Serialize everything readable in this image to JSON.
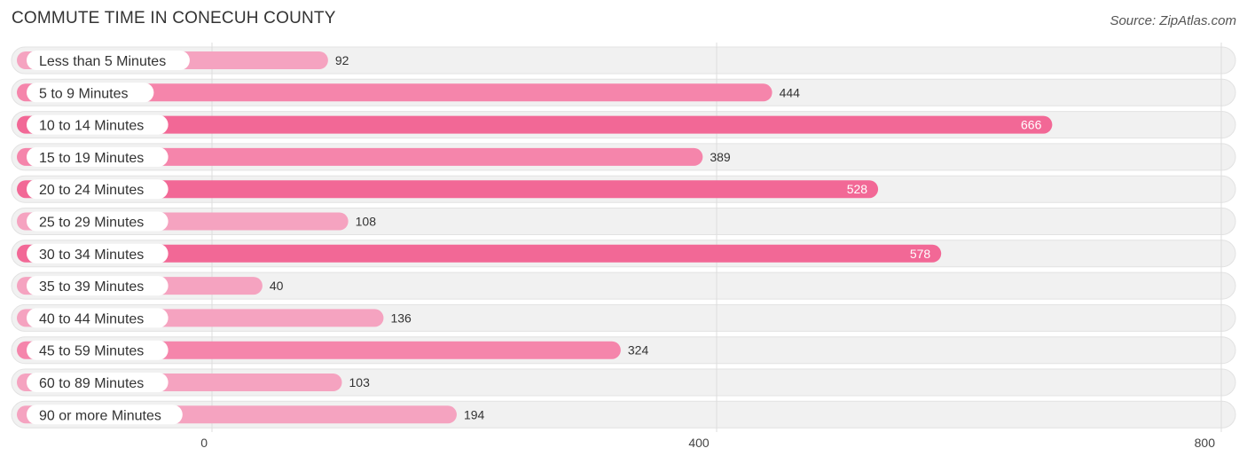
{
  "title": "COMMUTE TIME IN CONECUH COUNTY",
  "source": "Source: ZipAtlas.com",
  "colors": {
    "bar_light": "#f5a3c0",
    "bar_mid": "#f585ab",
    "bar_strong": "#f26896",
    "track": "#f1f1f1",
    "track_border": "#e2e2e2",
    "grid": "#dddddd"
  },
  "chart_data": {
    "type": "bar",
    "orientation": "horizontal",
    "title": "COMMUTE TIME IN CONECUH COUNTY",
    "xlabel": "",
    "ylabel": "",
    "xlim": [
      0,
      800
    ],
    "xticks": [
      0,
      400,
      800
    ],
    "grid": true,
    "categories": [
      "Less than 5 Minutes",
      "5 to 9 Minutes",
      "10 to 14 Minutes",
      "15 to 19 Minutes",
      "20 to 24 Minutes",
      "25 to 29 Minutes",
      "30 to 34 Minutes",
      "35 to 39 Minutes",
      "40 to 44 Minutes",
      "45 to 59 Minutes",
      "60 to 89 Minutes",
      "90 or more Minutes"
    ],
    "values": [
      92,
      444,
      666,
      389,
      528,
      108,
      578,
      40,
      136,
      324,
      103,
      194
    ]
  }
}
